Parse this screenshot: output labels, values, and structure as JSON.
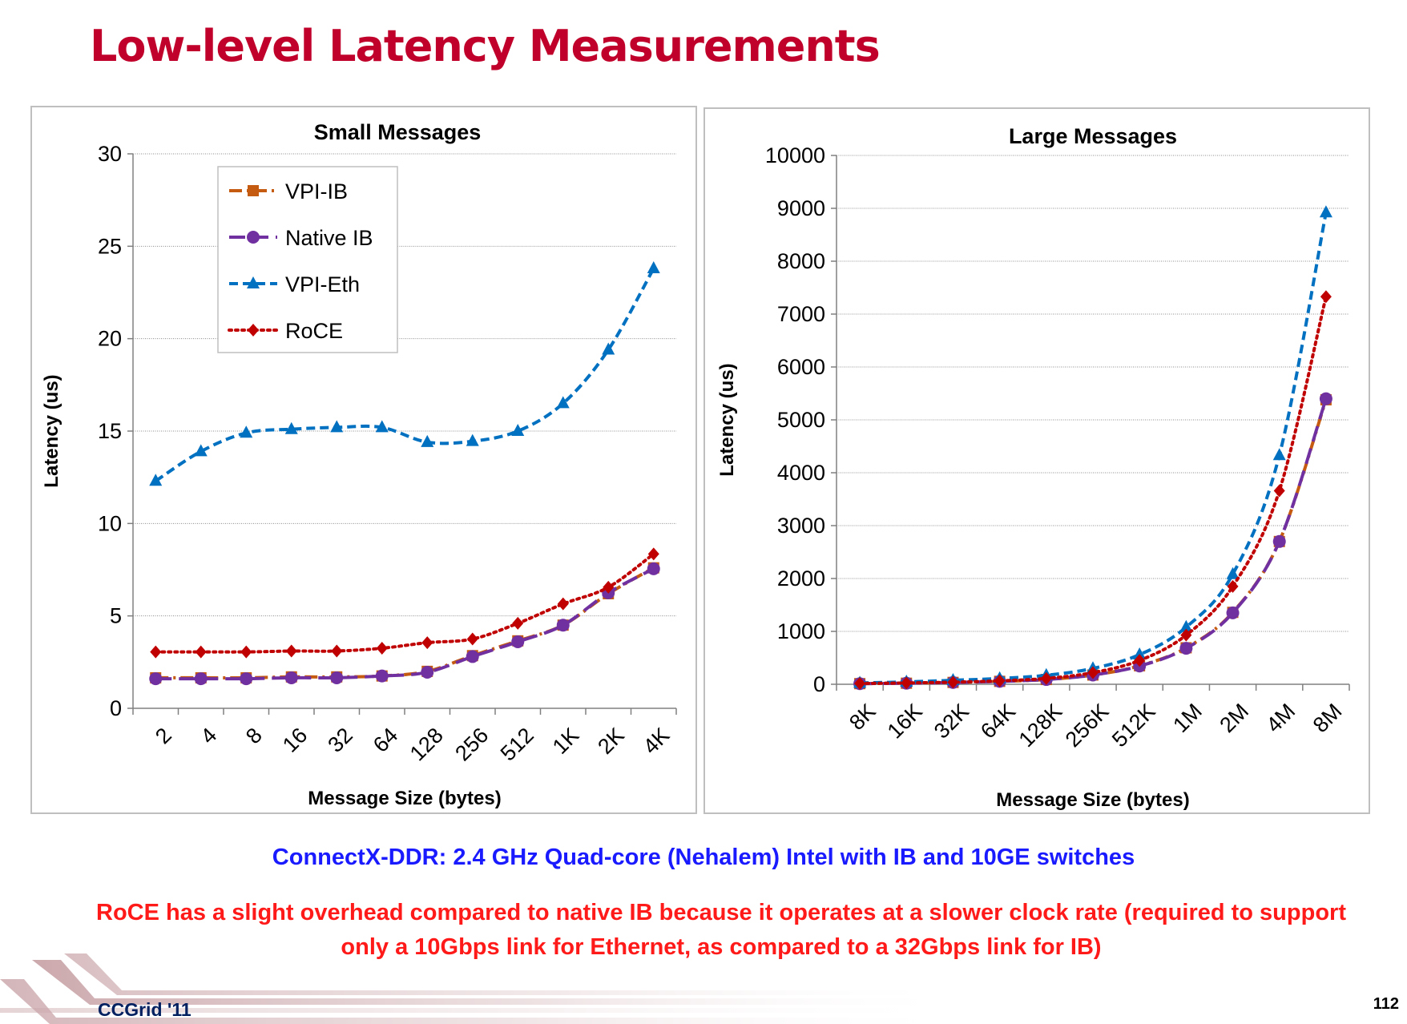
{
  "slide": {
    "title": "Low-level Latency Measurements",
    "subtitle": "ConnectX-DDR: 2.4 GHz Quad-core (Nehalem) Intel with IB and 10GE switches",
    "note_line1": "RoCE has a slight overhead compared to native IB because it operates at a slower clock rate (required to support",
    "note_line2": "only a 10Gbps link for Ethernet, as compared to a 32Gbps link for IB)",
    "footer_left": "CCGrid '11",
    "page_number": "112"
  },
  "chart_data": [
    {
      "type": "line",
      "title": "Small Messages",
      "xlabel": "Message Size (bytes)",
      "ylabel": "Latency (us)",
      "categories": [
        "2",
        "4",
        "8",
        "16",
        "32",
        "64",
        "128",
        "256",
        "512",
        "1K",
        "2K",
        "4K"
      ],
      "ylim": [
        0,
        30
      ],
      "yticks": [
        0,
        5,
        10,
        15,
        20,
        25,
        30
      ],
      "grid": true,
      "legend": "top-left",
      "series": [
        {
          "name": "VPI-IB",
          "color": "#c55a11",
          "marker": "square",
          "dash": "long-dash-dot",
          "values": [
            1.65,
            1.65,
            1.65,
            1.7,
            1.7,
            1.75,
            2.0,
            2.85,
            3.65,
            4.5,
            6.2,
            7.6
          ]
        },
        {
          "name": "Native IB",
          "color": "#7030a0",
          "marker": "circle",
          "dash": "long-dash",
          "values": [
            1.6,
            1.6,
            1.6,
            1.65,
            1.65,
            1.75,
            1.95,
            2.8,
            3.6,
            4.5,
            6.25,
            7.55
          ]
        },
        {
          "name": "VPI-Eth",
          "color": "#0070c0",
          "marker": "triangle",
          "dash": "dash",
          "values": [
            12.3,
            13.9,
            14.9,
            15.1,
            15.2,
            15.2,
            14.4,
            14.45,
            15.0,
            16.5,
            19.4,
            23.8
          ]
        },
        {
          "name": "RoCE",
          "color": "#c00000",
          "marker": "diamond",
          "dash": "dot",
          "values": [
            3.05,
            3.05,
            3.05,
            3.1,
            3.1,
            3.25,
            3.55,
            3.75,
            4.6,
            5.65,
            6.55,
            8.35
          ]
        }
      ]
    },
    {
      "type": "line",
      "title": "Large Messages",
      "xlabel": "Message Size (bytes)",
      "ylabel": "Latency (us)",
      "categories": [
        "8K",
        "16K",
        "32K",
        "64K",
        "128K",
        "256K",
        "512K",
        "1M",
        "2M",
        "4M",
        "8M"
      ],
      "ylim": [
        0,
        10000
      ],
      "yticks": [
        0,
        1000,
        2000,
        3000,
        4000,
        5000,
        6000,
        7000,
        8000,
        9000,
        10000
      ],
      "grid": true,
      "legend": "none",
      "series": [
        {
          "name": "VPI-IB",
          "color": "#c55a11",
          "marker": "square",
          "dash": "long-dash-dot",
          "values": [
            12,
            20,
            35,
            55,
            90,
            175,
            350,
            690,
            1360,
            2700,
            5380
          ]
        },
        {
          "name": "Native IB",
          "color": "#7030a0",
          "marker": "circle",
          "dash": "long-dash",
          "values": [
            12,
            20,
            35,
            55,
            90,
            175,
            345,
            680,
            1350,
            2700,
            5400
          ]
        },
        {
          "name": "VPI-Eth",
          "color": "#0070c0",
          "marker": "triangle",
          "dash": "dash",
          "values": [
            25,
            45,
            75,
            110,
            170,
            300,
            560,
            1080,
            2080,
            4330,
            8920
          ]
        },
        {
          "name": "RoCE",
          "color": "#c00000",
          "marker": "diamond",
          "dash": "dot",
          "values": [
            15,
            25,
            40,
            65,
            110,
            220,
            450,
            930,
            1850,
            3660,
            7330
          ]
        }
      ]
    }
  ]
}
